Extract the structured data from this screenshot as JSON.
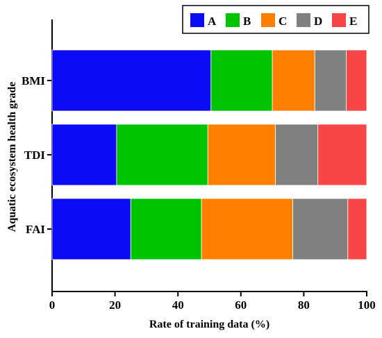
{
  "chart_data": {
    "type": "bar",
    "orientation": "horizontal",
    "stacked": true,
    "title": "",
    "xlabel": "Rate of training data (%)",
    "ylabel": "Aquatic ecosystem health grade",
    "xlim": [
      0,
      100
    ],
    "xticks": [
      "0",
      "20",
      "40",
      "60",
      "80",
      "100"
    ],
    "grid": false,
    "legend_position": "top-right",
    "categories": [
      "BMI",
      "TDI",
      "FAI"
    ],
    "series": [
      {
        "name": "A",
        "color": "#0b0bf5",
        "values": [
          50.5,
          20.5,
          25.0
        ]
      },
      {
        "name": "B",
        "color": "#00c400",
        "values": [
          19.5,
          29.0,
          22.5
        ]
      },
      {
        "name": "C",
        "color": "#ff8000",
        "values": [
          13.5,
          21.5,
          29.0
        ]
      },
      {
        "name": "D",
        "color": "#808080",
        "values": [
          10.0,
          13.5,
          17.5
        ]
      },
      {
        "name": "E",
        "color": "#f84545",
        "values": [
          6.5,
          15.5,
          6.0
        ]
      }
    ]
  }
}
